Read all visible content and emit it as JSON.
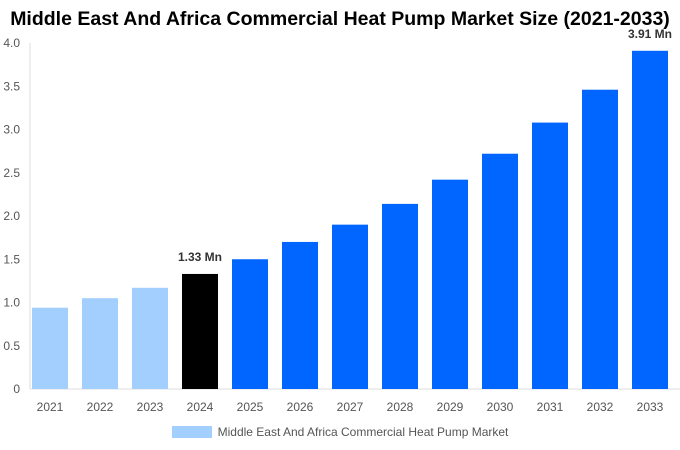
{
  "chart_data": {
    "type": "bar",
    "title": "Middle East And Africa Commercial Heat Pump Market Size (2021-2033)",
    "categories": [
      "2021",
      "2022",
      "2023",
      "2024",
      "2025",
      "2026",
      "2027",
      "2028",
      "2029",
      "2030",
      "2031",
      "2032",
      "2033"
    ],
    "series": [
      {
        "name": "Middle East And Africa Commercial Heat Pump Market",
        "values": [
          0.94,
          1.05,
          1.17,
          1.33,
          1.5,
          1.7,
          1.9,
          2.14,
          2.42,
          2.72,
          3.08,
          3.46,
          3.91
        ]
      }
    ],
    "bar_colors": [
      "#a3cfff",
      "#a3cfff",
      "#a3cfff",
      "#000000",
      "#0066ff",
      "#0066ff",
      "#0066ff",
      "#0066ff",
      "#0066ff",
      "#0066ff",
      "#0066ff",
      "#0066ff",
      "#0066ff"
    ],
    "data_labels": [
      {
        "category": "2024",
        "text": "1.33 Mn"
      },
      {
        "category": "2033",
        "text": "3.91 Mn"
      }
    ],
    "ylim": [
      0,
      4.0
    ],
    "yticks": [
      "0",
      "0.5",
      "1.0",
      "1.5",
      "2.0",
      "2.5",
      "3.0",
      "3.5",
      "4.0"
    ],
    "grid": false,
    "legend_position": "bottom",
    "legend_color": "#a3cfff",
    "xlabel": "",
    "ylabel": ""
  }
}
